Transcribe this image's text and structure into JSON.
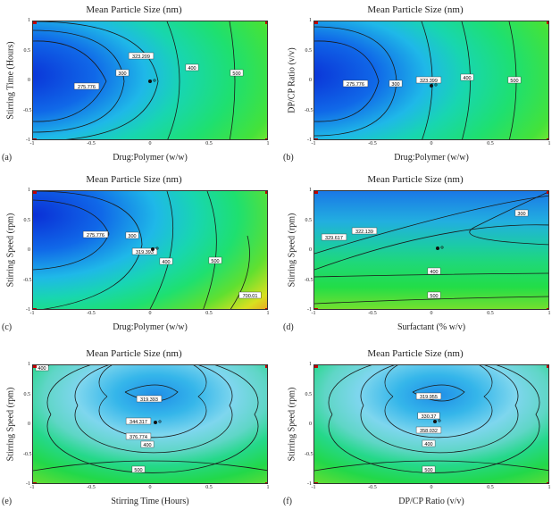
{
  "chart_data": [
    {
      "id": "a",
      "type": "contour",
      "panel_label": "(a)",
      "title": "Mean Particle Size (nm)",
      "xlabel": "Drug:Polymer (w/w)",
      "ylabel": "Stirring Time (Hours)",
      "xlim": [
        -1,
        1
      ],
      "ylim": [
        -1,
        1
      ],
      "xticks": [
        "-1",
        "-0.5",
        "0",
        "0.5",
        "1"
      ],
      "yticks": [
        "1",
        "0.5",
        "0",
        "-0.5",
        "-1"
      ],
      "contour_labels": [
        "275.776",
        "300",
        "323.209",
        "400",
        "500"
      ]
    },
    {
      "id": "b",
      "type": "contour",
      "panel_label": "(b)",
      "title": "Mean Particle Size (nm)",
      "xlabel": "Drug:Polymer (w/w)",
      "ylabel": "DP/CP Ratio (v/v)",
      "xlim": [
        -1,
        1
      ],
      "ylim": [
        -1,
        1
      ],
      "xticks": [
        "-1",
        "-0.5",
        "0",
        "0.5",
        "1"
      ],
      "yticks": [
        "1",
        "0.5",
        "0",
        "-0.5",
        "-1"
      ],
      "contour_labels": [
        "275.776",
        "300",
        "323.399",
        "400",
        "500"
      ]
    },
    {
      "id": "c",
      "type": "contour",
      "panel_label": "(c)",
      "title": "Mean Particle Size (nm)",
      "xlabel": "Drug:Polymer (w/w)",
      "ylabel": "Stirring Speed (rpm)",
      "xlim": [
        -1,
        1
      ],
      "ylim": [
        -1,
        1
      ],
      "xticks": [
        "-1",
        "-0.5",
        "0",
        "0.5",
        "1"
      ],
      "yticks": [
        "1",
        "0.5",
        "0",
        "-0.5",
        "-1"
      ],
      "contour_labels": [
        "275.776",
        "300",
        "319.393",
        "400",
        "500",
        "700.01"
      ]
    },
    {
      "id": "d",
      "type": "contour",
      "panel_label": "(d)",
      "title": "Mean Particle Size (nm)",
      "xlabel": "Surfactant (% w/v)",
      "ylabel": "Stirring Speed (rpm)",
      "xlim": [
        -1,
        1
      ],
      "ylim": [
        -1,
        1
      ],
      "xticks": [
        "-1",
        "-0.5",
        "0",
        "0.5",
        "1"
      ],
      "yticks": [
        "1",
        "0.5",
        "0",
        "-0.5",
        "-1"
      ],
      "contour_labels": [
        "329.617",
        "322.139",
        "300",
        "400",
        "500"
      ]
    },
    {
      "id": "e",
      "type": "contour",
      "panel_label": "(e)",
      "title": "Mean Particle Size (nm)",
      "xlabel": "Stirring Time (Hours)",
      "ylabel": "Stirring Speed (rpm)",
      "xlim": [
        -1,
        1
      ],
      "ylim": [
        -1,
        1
      ],
      "xticks": [
        "-1",
        "-0.5",
        "0",
        "0.5",
        "1"
      ],
      "yticks": [
        "1",
        "0.5",
        "0",
        "-0.5",
        "-1"
      ],
      "contour_labels": [
        "400",
        "319.393",
        "344.317",
        "376.774",
        "400",
        "500"
      ]
    },
    {
      "id": "f",
      "type": "contour",
      "panel_label": "(f)",
      "title": "Mean Particle Size (nm)",
      "xlabel": "DP/CP Ratio (v/v)",
      "ylabel": "Stirring Speed (rpm)",
      "xlim": [
        -1,
        1
      ],
      "ylim": [
        -1,
        1
      ],
      "xticks": [
        "-1",
        "-0.5",
        "0",
        "0.5",
        "1"
      ],
      "yticks": [
        "1",
        "0.5",
        "0",
        "-0.5",
        "-1"
      ],
      "contour_labels": [
        "319.955",
        "330.37",
        "358.032",
        "400",
        "500"
      ]
    }
  ]
}
